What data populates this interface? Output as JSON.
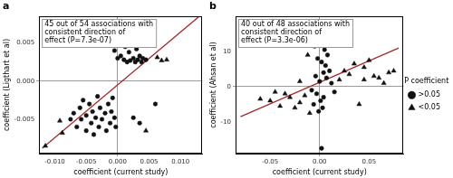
{
  "chart_data": [
    {
      "type": "scatter",
      "panel_label": "a",
      "annotation": [
        "45 out of 54 associations with",
        "consistent direction of",
        "effect (P=7.3e-07)"
      ],
      "xlabel": "coefficient (current study)",
      "ylabel": "coefficient (Ligthart et al)",
      "xlim": [
        -0.0125,
        0.0135
      ],
      "xticks": [
        {
          "value": -0.01,
          "label": "-0.010"
        },
        {
          "value": -0.005,
          "label": "-0.005"
        },
        {
          "value": 0,
          "label": "0.000"
        },
        {
          "value": 0.005,
          "label": "0.005"
        },
        {
          "value": 0.01,
          "label": "0.010"
        }
      ],
      "ylim": [
        -0.0095,
        0.0085
      ],
      "yticks": [
        {
          "value": -0.005,
          "label": "-0.005"
        },
        {
          "value": 0,
          "label": "0.000"
        },
        {
          "value": 0.005,
          "label": "0.005"
        }
      ],
      "grid": false,
      "fit_line": {
        "x": [
          -0.012,
          0.013
        ],
        "y": [
          -0.0088,
          0.0085
        ],
        "color": "#a52a2a"
      },
      "series": [
        {
          "name": ">0.05",
          "marker": "circle",
          "color": "#111111",
          "x": [
            0.0005,
            0.001,
            0.0012,
            0.0015,
            0.0018,
            0.002,
            0.0022,
            0.0025,
            0.0028,
            0.003,
            0.0032,
            0.0035,
            0.0038,
            0.004,
            0.0045,
            0.0005,
            0.0015,
            0.0,
            -0.0005,
            -0.0075,
            -0.007,
            -0.0065,
            -0.006,
            -0.0058,
            -0.0055,
            -0.005,
            -0.005,
            -0.0045,
            -0.0042,
            -0.004,
            -0.0038,
            -0.0035,
            -0.0032,
            -0.003,
            -0.0028,
            -0.0025,
            -0.002,
            -0.0018,
            -0.0015,
            -0.0012,
            -0.001,
            -0.0008,
            -0.0005,
            -0.0003,
            0.0025,
            0.0035,
            0.006
          ],
          "y": [
            0.0033,
            0.0028,
            0.0045,
            0.0025,
            0.0038,
            0.0027,
            0.005,
            0.003,
            0.0025,
            0.0042,
            0.0028,
            0.0033,
            0.0025,
            0.003,
            0.0028,
            0.0055,
            0.006,
            0.003,
            0.004,
            -0.005,
            -0.0042,
            -0.006,
            -0.0035,
            -0.005,
            -0.0025,
            -0.0045,
            -0.0065,
            -0.003,
            -0.0055,
            -0.004,
            -0.007,
            -0.0048,
            -0.002,
            -0.006,
            -0.0035,
            -0.005,
            -0.0042,
            -0.0065,
            -0.003,
            -0.0055,
            -0.004,
            -0.0022,
            -0.0048,
            -0.006,
            -0.0048,
            -0.0055,
            -0.003
          ]
        },
        {
          "name": "<0.05",
          "marker": "triangle",
          "color": "#111111",
          "x": [
            0.007,
            0.0078,
            0.0063,
            -0.0115,
            -0.0092,
            -0.0088,
            0.0045
          ],
          "y": [
            0.0027,
            0.0028,
            0.0031,
            -0.0085,
            -0.0052,
            -0.0068,
            -0.0065
          ]
        }
      ]
    },
    {
      "type": "scatter",
      "panel_label": "b",
      "annotation": [
        "40 out of 48 associations with",
        "consistent direction of",
        "effect (P=3.3e-06)"
      ],
      "xlabel": "coefficient (current study)",
      "ylabel": "coefficient (Ahsan et al)",
      "xlim": [
        -0.085,
        0.085
      ],
      "xticks": [
        {
          "value": -0.05,
          "label": "-0.05"
        },
        {
          "value": 0,
          "label": "0.00"
        },
        {
          "value": 0.05,
          "label": "0.05"
        }
      ],
      "ylim": [
        -19,
        20
      ],
      "yticks": [
        -10,
        0,
        10
      ],
      "grid": false,
      "legend": "right",
      "legend_title": "P coefficient",
      "fit_line": {
        "x": [
          -0.08,
          0.08
        ],
        "y": [
          -8.5,
          11
        ],
        "color": "#a52a2a"
      },
      "series": [
        {
          "name": ">0.05",
          "marker": "circle",
          "color": "#111111",
          "x": [
            -0.005,
            0.0,
            0.003,
            0.005,
            0.008,
            -0.002,
            0.002,
            0.006,
            0.01,
            0.004,
            -0.004,
            0.0,
            0.007,
            0.012,
            -0.008,
            -0.003,
            0.004,
            0.001,
            -0.006,
            0.003,
            -0.001,
            0.002,
            0.015
          ],
          "y": [
            11.5,
            13.0,
            12.0,
            10.5,
            9.0,
            8.0,
            7.0,
            6.0,
            4.5,
            4.0,
            3.0,
            1.5,
            2.5,
            1.0,
            -1.0,
            -2.0,
            -3.0,
            -4.0,
            -5.0,
            -6.0,
            -7.0,
            -17.5,
            -1.5
          ]
        },
        {
          "name": "<0.05",
          "marker": "triangle",
          "color": "#111111",
          "x": [
            0.025,
            0.03,
            0.045,
            0.05,
            0.055,
            0.06,
            0.07,
            0.075,
            0.035,
            0.02,
            0.04,
            0.045,
            -0.05,
            -0.04,
            -0.03,
            -0.025,
            -0.02,
            -0.015,
            -0.035,
            -0.06,
            -0.01,
            -0.045,
            -0.012,
            0.065,
            -0.02
          ],
          "y": [
            4.5,
            3.5,
            5.5,
            7.5,
            3.0,
            2.5,
            4.0,
            4.5,
            6.5,
            2.0,
            -5.0,
            2.0,
            -4.0,
            -5.5,
            -3.0,
            -6.0,
            -4.5,
            -2.5,
            -2.0,
            -3.5,
            -7.5,
            -1.5,
            9.0,
            1.0,
            1.5
          ]
        }
      ]
    }
  ]
}
